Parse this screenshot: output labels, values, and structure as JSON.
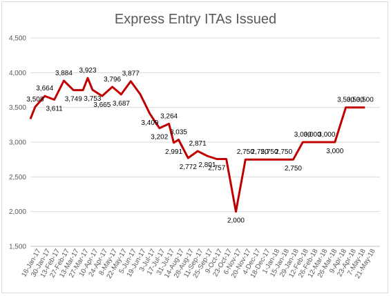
{
  "chart_data": {
    "type": "line",
    "title": "Express Entry ITAs Issued",
    "xlabel": "",
    "ylabel": "",
    "ylim": [
      1500,
      4500
    ],
    "yticks": [
      "1,500",
      "2,000",
      "2,500",
      "3,000",
      "3,500",
      "4,000",
      "4,500"
    ],
    "ytick_values": [
      1500,
      2000,
      2500,
      3000,
      3500,
      4000,
      4500
    ],
    "grid": "horizontal",
    "legend": "none",
    "line_color": "#c00000",
    "x_tick_labels": [
      "16-Jan-17",
      "30-Jan-17",
      "13-Feb-17",
      "27-Feb-17",
      "13-Mar-17",
      "27-Mar-17",
      "10-Apr-17",
      "24-Apr-17",
      "8-May-17",
      "22-May-17",
      "5-Jun-17",
      "19-Jun-17",
      "3-Jul-17",
      "17-Jul-17",
      "31-Jul-17",
      "14-Aug-17",
      "28-Aug-17",
      "11-Sep-17",
      "25-Sep-17",
      "9-Oct-17",
      "23-Oct-17",
      "6-Nov-17",
      "20-Nov-17",
      "4-Dec-17",
      "18-Dec-17",
      "1-Jan-18",
      "15-Jan-18",
      "29-Jan-18",
      "12-Feb-18",
      "26-Feb-18",
      "12-Mar-18",
      "26-Mar-18",
      "9-Apr-18",
      "23-Apr-18",
      "7-May-18",
      "21-May-18"
    ],
    "points": [
      {
        "x": "2017-01-04",
        "y": 3334,
        "label": ""
      },
      {
        "x": "2017-01-11",
        "y": 3508,
        "label": "3,508"
      },
      {
        "x": "2017-01-25",
        "y": 3664,
        "label": "3,664"
      },
      {
        "x": "2017-02-08",
        "y": 3611,
        "label": "3,611"
      },
      {
        "x": "2017-02-22",
        "y": 3884,
        "label": "3,884"
      },
      {
        "x": "2017-03-08",
        "y": 3749,
        "label": "3,749"
      },
      {
        "x": "2017-03-22",
        "y": 3749,
        "label": ""
      },
      {
        "x": "2017-03-29",
        "y": 3923,
        "label": "3,923"
      },
      {
        "x": "2017-04-05",
        "y": 3753,
        "label": "3,753"
      },
      {
        "x": "2017-04-19",
        "y": 3665,
        "label": "3,665"
      },
      {
        "x": "2017-05-04",
        "y": 3796,
        "label": "3,796"
      },
      {
        "x": "2017-05-17",
        "y": 3687,
        "label": "3,687"
      },
      {
        "x": "2017-05-31",
        "y": 3877,
        "label": "3,877"
      },
      {
        "x": "2017-06-14",
        "y": 3687,
        "label": ""
      },
      {
        "x": "2017-06-28",
        "y": 3409,
        "label": "3,409"
      },
      {
        "x": "2017-07-12",
        "y": 3202,
        "label": "3,202"
      },
      {
        "x": "2017-07-26",
        "y": 3264,
        "label": "3,264"
      },
      {
        "x": "2017-08-02",
        "y": 2991,
        "label": "2,991"
      },
      {
        "x": "2017-08-09",
        "y": 3035,
        "label": "3,035"
      },
      {
        "x": "2017-08-23",
        "y": 2772,
        "label": "2,772"
      },
      {
        "x": "2017-09-06",
        "y": 2871,
        "label": "2,871"
      },
      {
        "x": "2017-09-20",
        "y": 2801,
        "label": "2,801"
      },
      {
        "x": "2017-10-04",
        "y": 2757,
        "label": "2,757"
      },
      {
        "x": "2017-10-18",
        "y": 2757,
        "label": ""
      },
      {
        "x": "2017-11-01",
        "y": 2000,
        "label": "2,000"
      },
      {
        "x": "2017-11-15",
        "y": 2750,
        "label": "2,750"
      },
      {
        "x": "2017-12-06",
        "y": 2750,
        "label": "2,750"
      },
      {
        "x": "2017-12-20",
        "y": 2750,
        "label": "2,750"
      },
      {
        "x": "2018-01-10",
        "y": 2750,
        "label": "2,750"
      },
      {
        "x": "2018-01-24",
        "y": 2750,
        "label": "2,750"
      },
      {
        "x": "2018-02-07",
        "y": 3000,
        "label": "3,000"
      },
      {
        "x": "2018-02-21",
        "y": 3000,
        "label": "3,000"
      },
      {
        "x": "2018-03-14",
        "y": 3000,
        "label": "3,000"
      },
      {
        "x": "2018-03-26",
        "y": 3000,
        "label": "3,000"
      },
      {
        "x": "2018-04-11",
        "y": 3500,
        "label": "3,500"
      },
      {
        "x": "2018-04-25",
        "y": 3500,
        "label": "3,500"
      },
      {
        "x": "2018-05-09",
        "y": 3500,
        "label": "3,500"
      }
    ]
  }
}
